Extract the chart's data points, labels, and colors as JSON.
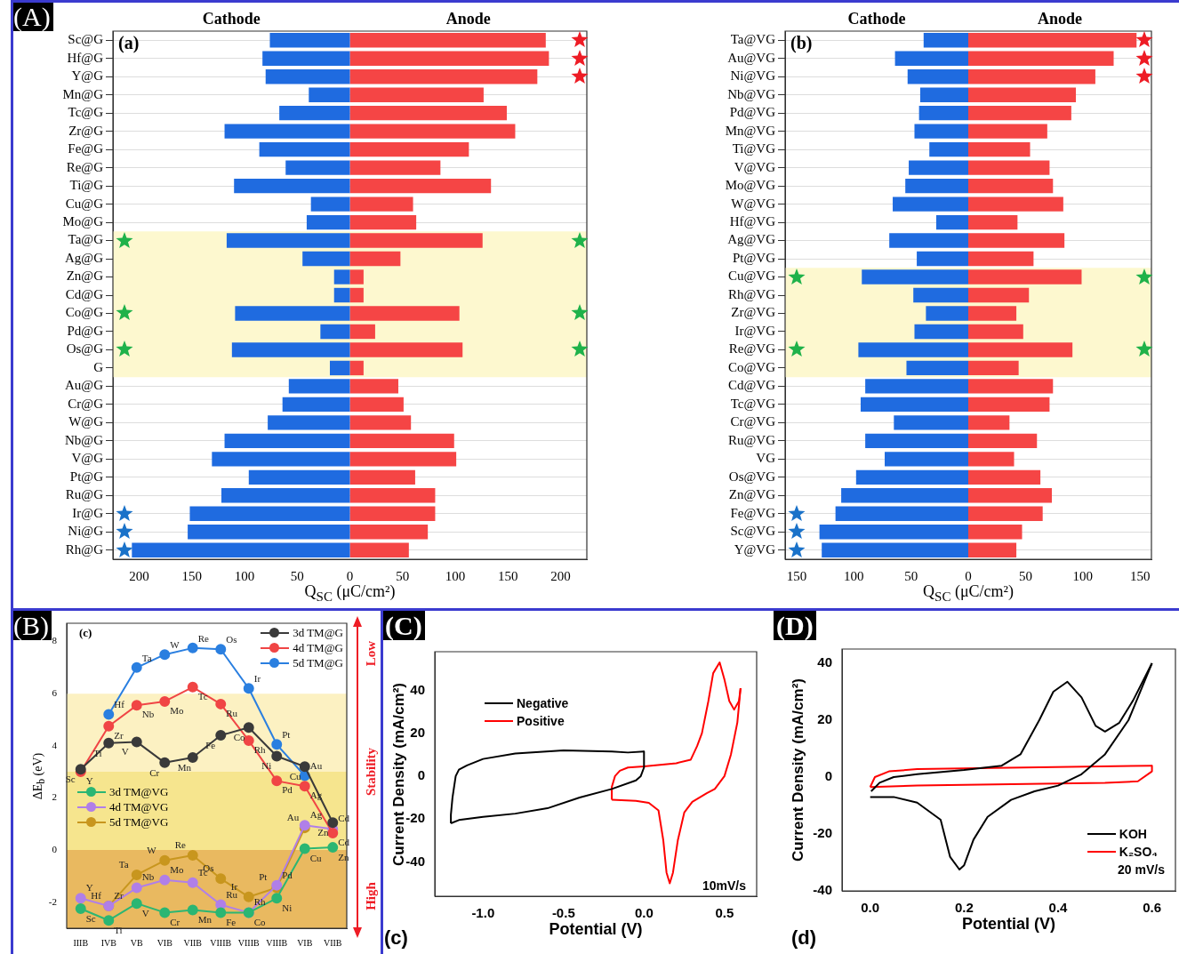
{
  "chart_data": [
    {
      "type": "bar",
      "orientation": "horizontal",
      "stacked": true,
      "xlabel": "Q$_{SC}$ (μC/cm²)",
      "annotations": [
        "(A)",
        "(a)"
      ],
      "grid": "y",
      "legend": false,
      "categories": [
        "Sc@G",
        "Hf@G",
        "Y@G",
        "Mn@G",
        "Tc@G",
        "Zr@G",
        "Fe@G",
        "Re@G",
        "Ti@G",
        "Cu@G",
        "Mo@G",
        "Ta@G",
        "Ag@G",
        "Zn@G",
        "Cd@G",
        "Co@G",
        "Pd@G",
        "Os@G",
        "G",
        "Au@G",
        "Cr@G",
        "W@G",
        "Nb@G",
        "V@G",
        "Pt@G",
        "Ru@G",
        "Ir@G",
        "Ni@G",
        "Rh@G"
      ],
      "series": [
        {
          "name": "Cathode",
          "color": "#1f6be0",
          "values": [
            -76,
            -83,
            -80,
            -39,
            -67,
            -119,
            -86,
            -61,
            -110,
            -37,
            -41,
            -117,
            -45,
            -15,
            -15,
            -109,
            -28,
            -112,
            -19,
            -58,
            -64,
            -78,
            -119,
            -131,
            -96,
            -122,
            -152,
            -154,
            -207
          ]
        },
        {
          "name": "Anode",
          "color": "#f54545",
          "values": [
            186,
            189,
            178,
            127,
            149,
            157,
            113,
            86,
            134,
            60,
            63,
            126,
            48,
            13,
            13,
            104,
            24,
            107,
            13,
            46,
            51,
            58,
            99,
            101,
            62,
            81,
            81,
            74,
            56
          ]
        }
      ],
      "xlim": [
        -225,
        225
      ],
      "xticks": [
        {
          "value": -200,
          "label": "200"
        },
        {
          "value": -150,
          "label": "150"
        },
        {
          "value": -100,
          "label": "100"
        },
        {
          "value": -50,
          "label": "50"
        },
        0,
        50,
        100,
        150,
        200
      ],
      "bands": [
        {
          "axis": "y",
          "from": "Ta@G",
          "to": "G",
          "color": "#fdf8cf"
        }
      ]
    },
    {
      "type": "bar",
      "orientation": "horizontal",
      "stacked": true,
      "xlabel": "Q$_{SC}$ (μC/cm²)",
      "annotations": [
        "(b)"
      ],
      "grid": "y",
      "legend": false,
      "categories": [
        "Ta@VG",
        "Au@VG",
        "Ni@VG",
        "Nb@VG",
        "Pd@VG",
        "Mn@VG",
        "Ti@VG",
        "V@VG",
        "Mo@VG",
        "W@VG",
        "Hf@VG",
        "Ag@VG",
        "Pt@VG",
        "Cu@VG",
        "Rh@VG",
        "Zr@VG",
        "Ir@VG",
        "Re@VG",
        "Co@VG",
        "Cd@VG",
        "Tc@VG",
        "Cr@VG",
        "Ru@VG",
        "VG",
        "Os@VG",
        "Zn@VG",
        "Fe@VG",
        "Sc@VG",
        "Y@VG"
      ],
      "series": [
        {
          "name": "Cathode",
          "color": "#1f6be0",
          "values": [
            -39,
            -64,
            -53,
            -42,
            -43,
            -47,
            -34,
            -52,
            -55,
            -66,
            -28,
            -69,
            -45,
            -93,
            -48,
            -37,
            -47,
            -96,
            -54,
            -90,
            -94,
            -65,
            -90,
            -73,
            -98,
            -111,
            -116,
            -130,
            -128
          ]
        },
        {
          "name": "Anode",
          "color": "#f54545",
          "values": [
            147,
            127,
            111,
            94,
            90,
            69,
            54,
            71,
            74,
            83,
            43,
            84,
            57,
            99,
            53,
            42,
            48,
            91,
            44,
            74,
            71,
            36,
            60,
            40,
            63,
            73,
            65,
            47,
            42
          ]
        }
      ],
      "xlim": [
        -160,
        160
      ],
      "xticks": [
        {
          "value": -150,
          "label": "150"
        },
        {
          "value": -100,
          "label": "100"
        },
        {
          "value": -50,
          "label": "50"
        },
        0,
        50,
        100,
        150
      ],
      "bands": [
        {
          "axis": "y",
          "from": "Cu@VG",
          "to": "Co@VG",
          "color": "#fdf8cf"
        }
      ]
    },
    {
      "type": "line",
      "ylabel": "ΔE$_{b}$ (eV)",
      "annotations": [
        "(B)",
        "(c)",
        "Low",
        "Stability",
        "High"
      ],
      "marker": "circle",
      "legend": "top right",
      "categories": [
        "IIIB",
        "IVB",
        "VB",
        "VIB",
        "VIIB",
        "VIIIB",
        "VIIIB",
        "VIIIB",
        "VIB",
        "VIIB"
      ],
      "series": [
        {
          "name": "3d TM@G",
          "color": "#3a3a3a",
          "values": [
            3.1,
            4.1,
            4.15,
            3.35,
            3.55,
            4.4,
            4.7,
            3.6,
            3.2,
            1.05
          ],
          "value_labels": [
            "Sc",
            "Ti",
            "V",
            "Cr",
            "Mn",
            "Fe",
            "Co",
            "Ni",
            "Cu",
            "Zn"
          ]
        },
        {
          "name": "4d TM@G",
          "color": "#f04545",
          "values": [
            3.0,
            4.75,
            5.55,
            5.7,
            6.25,
            5.6,
            4.2,
            2.65,
            2.45,
            0.65
          ],
          "value_labels": [
            "Y",
            "Zr",
            "Nb",
            "Mo",
            "Tc",
            "Ru",
            "Rh",
            "Pd",
            "Ag",
            "Cd"
          ]
        },
        {
          "name": "5d TM@G",
          "color": "#2a7fe0",
          "values": [
            null,
            5.2,
            7.0,
            7.5,
            7.75,
            7.7,
            6.2,
            4.05,
            2.85,
            null
          ],
          "value_labels": [
            null,
            "Hf",
            "Ta",
            "W",
            "Re",
            "Os",
            "Ir",
            "Pt",
            "Au",
            null
          ]
        },
        {
          "name": "3d TM@VG",
          "color": "#2bb673",
          "values": [
            -2.25,
            -2.7,
            -2.05,
            -2.4,
            -2.3,
            -2.4,
            -2.4,
            -1.85,
            0.05,
            0.1
          ],
          "value_labels": [
            "Sc",
            "Ti",
            "V",
            "Cr",
            "Mn",
            "Fe",
            "Co",
            "Ni",
            "Cu",
            "Zn"
          ]
        },
        {
          "name": "4d TM@VG",
          "color": "#b07fe8",
          "values": [
            -1.85,
            -2.15,
            -1.45,
            -1.15,
            -1.25,
            -2.1,
            -2.4,
            -1.35,
            0.95,
            0.8
          ],
          "value_labels": [
            "Y",
            "Zr",
            "Nb",
            "Mo",
            "Tc",
            "Ru",
            "Rh",
            "Pd",
            "Ag",
            "Cd"
          ]
        },
        {
          "name": "5d TM@VG",
          "color": "#c8961e",
          "values": [
            null,
            -2.15,
            -0.95,
            -0.4,
            -0.2,
            -1.1,
            -1.8,
            -1.45,
            0.85,
            null
          ],
          "value_labels": [
            null,
            "Hf",
            "Ta",
            "W",
            "Re",
            "Os",
            "Ir",
            "Pt",
            "Au",
            null
          ]
        }
      ],
      "ylim": [
        -3,
        8.7
      ],
      "yticks": [
        -2,
        0,
        2,
        4,
        6,
        8
      ],
      "bands": [
        {
          "axis": "y",
          "from": 3,
          "to": 6,
          "color": "#fcf1c2"
        },
        {
          "axis": "y",
          "from": 0,
          "to": 3,
          "color": "#f6e58e"
        },
        {
          "axis": "y",
          "from": -3,
          "to": 0,
          "color": "#e9b960"
        }
      ]
    },
    {
      "type": "line",
      "xlabel": "Potential (V)",
      "ylabel": "Current Density (mA/cm²)",
      "annotations": [
        "(C)",
        "10mV/s",
        "(c)"
      ],
      "marker": "none",
      "legend": "top left",
      "series": [
        {
          "name": "Negative",
          "color": "#000000",
          "x": [
            0.0,
            0.0,
            -0.02,
            -0.05,
            -0.2,
            -0.4,
            -0.6,
            -0.8,
            -1.0,
            -1.15,
            -1.2
          ],
          "values": [
            11.5,
            4,
            0,
            -2,
            -6,
            -10,
            -15,
            -17.5,
            -19,
            -20.5,
            -22
          ]
        },
        {
          "color": "#000000",
          "x": [
            -1.2,
            -1.2,
            -1.19,
            -1.17,
            -1.15,
            -1.1,
            -1.0,
            -0.8,
            -0.5,
            -0.2,
            -0.1,
            0.0
          ],
          "values": [
            -22,
            -18,
            -10,
            0,
            3,
            5,
            8,
            10.5,
            12,
            11.5,
            11,
            11.5
          ]
        },
        {
          "name": "Positive",
          "color": "#ff0000",
          "x": [
            -0.2,
            -0.2,
            -0.18,
            -0.15,
            -0.1,
            0.0,
            0.2,
            0.29,
            0.33,
            0.36,
            0.4,
            0.43,
            0.47,
            0.5,
            0.53,
            0.56,
            0.59,
            0.6
          ],
          "values": [
            -11,
            -5,
            0,
            2.5,
            4,
            4.5,
            6,
            7.6,
            14,
            20,
            35,
            48,
            53,
            45,
            35,
            31,
            35,
            41
          ]
        },
        {
          "color": "#ff0000",
          "x": [
            0.6,
            0.58,
            0.54,
            0.5,
            0.44,
            0.39,
            0.3,
            0.25,
            0.21,
            0.18,
            0.16,
            0.14,
            0.12,
            0.09,
            0.03,
            -0.05,
            -0.2
          ],
          "values": [
            41,
            25,
            10,
            0,
            -6,
            -8,
            -12,
            -17,
            -30,
            -45,
            -50,
            -45,
            -30,
            -16,
            -12.5,
            -11.5,
            -11
          ]
        }
      ],
      "xlim": [
        -1.3,
        0.7
      ],
      "xticks": [
        {
          "value": -1,
          "label": "-1.0"
        },
        -0.5,
        {
          "value": 0,
          "label": "0.0"
        },
        0.5
      ],
      "ylim": [
        -56,
        58
      ],
      "yticks": [
        -40,
        -20,
        0,
        20,
        40
      ]
    },
    {
      "type": "line",
      "xlabel": "Potential (V)",
      "ylabel": "Current Density (mA/cm²)",
      "annotations": [
        "(D)",
        "20 mV/s",
        "(d)"
      ],
      "marker": "none",
      "legend": "bottom right",
      "series": [
        {
          "name": "KOH",
          "color": "#000000",
          "x": [
            0.6,
            0.55,
            0.5,
            0.45,
            0.4,
            0.35,
            0.3,
            0.25,
            0.22,
            0.2,
            0.19,
            0.17,
            0.15,
            0.1,
            0.05,
            0.0
          ],
          "values": [
            40,
            20,
            8,
            1,
            -3,
            -5,
            -8,
            -14,
            -22,
            -31,
            -32.5,
            -28,
            -15,
            -9,
            -7,
            -7
          ]
        },
        {
          "color": "#000000",
          "x": [
            0.002,
            0.02,
            0.05,
            0.1,
            0.2,
            0.28,
            0.32,
            0.36,
            0.39,
            0.42,
            0.45,
            0.48,
            0.5,
            0.53,
            0.56,
            0.6
          ],
          "values": [
            -5,
            -2,
            0,
            1,
            2.5,
            4,
            8,
            20,
            30,
            33.5,
            28,
            18,
            16,
            19,
            27,
            40
          ]
        },
        {
          "name": "K₂SO₄",
          "color": "#ff0000",
          "x": [
            0.0,
            0.01,
            0.04,
            0.1,
            0.6
          ],
          "values": [
            -3.5,
            0,
            2,
            2.8,
            4
          ]
        },
        {
          "color": "#ff0000",
          "x": [
            0.6,
            0.6,
            0.57,
            0.5,
            0.1,
            0.0
          ],
          "values": [
            4,
            2,
            -1.5,
            -2,
            -3,
            -3.5
          ]
        }
      ],
      "xlim": [
        -0.06,
        0.65
      ],
      "xticks": [
        {
          "value": 0,
          "label": "0.0"
        },
        0.2,
        0.4,
        0.6
      ],
      "ylim": [
        -40,
        45
      ],
      "yticks": [
        -40,
        -20,
        0,
        20,
        40
      ]
    }
  ]
}
